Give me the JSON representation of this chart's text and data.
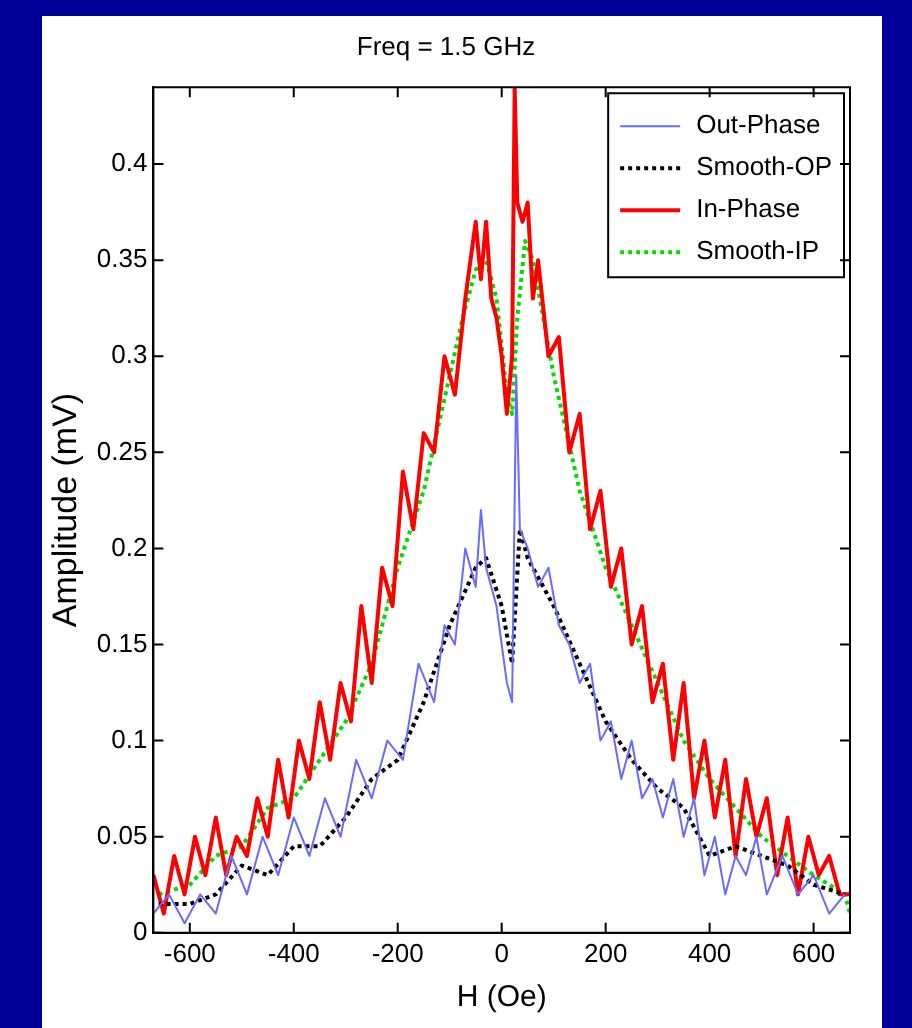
{
  "chart_data": {
    "type": "line",
    "title": "Freq = 1.5 GHz",
    "xlabel": "H (Oe)",
    "ylabel": "Amplitude (mV)",
    "xlim": [
      -670,
      670
    ],
    "xticks": [
      -600,
      -400,
      -200,
      0,
      200,
      400,
      600
    ],
    "ylim": [
      0,
      0.44
    ],
    "yticks": [
      0,
      0.05,
      0.1,
      0.15,
      0.2,
      0.25,
      0.3,
      0.35,
      0.4
    ],
    "grid": false,
    "legend": "top right",
    "marker": "none",
    "series": [
      {
        "name": "Out-Phase",
        "color": "#6a6aff",
        "line_style": "solid",
        "x": [
          -670,
          -640,
          -610,
          -580,
          -550,
          -520,
          -490,
          -460,
          -430,
          -400,
          -370,
          -340,
          -310,
          -280,
          -250,
          -220,
          -190,
          -160,
          -130,
          -110,
          -90,
          -70,
          -50,
          -40,
          -30,
          -10,
          0,
          10,
          20,
          28,
          35,
          50,
          70,
          90,
          110,
          130,
          150,
          170,
          190,
          210,
          230,
          250,
          270,
          290,
          310,
          330,
          350,
          370,
          390,
          410,
          430,
          450,
          470,
          490,
          510,
          540,
          570,
          600,
          630,
          660
        ],
        "values": [
          0.01,
          0.02,
          0.005,
          0.02,
          0.01,
          0.04,
          0.02,
          0.05,
          0.03,
          0.06,
          0.04,
          0.07,
          0.05,
          0.09,
          0.07,
          0.1,
          0.09,
          0.14,
          0.12,
          0.16,
          0.15,
          0.2,
          0.18,
          0.22,
          0.19,
          0.17,
          0.15,
          0.13,
          0.12,
          0.29,
          0.21,
          0.2,
          0.18,
          0.19,
          0.16,
          0.15,
          0.13,
          0.14,
          0.1,
          0.11,
          0.08,
          0.1,
          0.07,
          0.08,
          0.06,
          0.08,
          0.05,
          0.07,
          0.03,
          0.05,
          0.02,
          0.04,
          0.03,
          0.05,
          0.02,
          0.04,
          0.02,
          0.03,
          0.01,
          0.02
        ]
      },
      {
        "name": "Smooth-OP",
        "color": "#000000",
        "line_style": "dotted",
        "x": [
          -660,
          -600,
          -550,
          -500,
          -450,
          -400,
          -350,
          -300,
          -250,
          -200,
          -150,
          -100,
          -50,
          -30,
          0,
          20,
          35,
          50,
          100,
          150,
          200,
          250,
          300,
          350,
          400,
          450,
          500,
          550,
          600,
          660
        ],
        "values": [
          0.015,
          0.015,
          0.02,
          0.035,
          0.03,
          0.045,
          0.045,
          0.06,
          0.08,
          0.09,
          0.12,
          0.16,
          0.19,
          0.195,
          0.17,
          0.14,
          0.21,
          0.195,
          0.17,
          0.14,
          0.11,
          0.09,
          0.075,
          0.065,
          0.04,
          0.045,
          0.04,
          0.035,
          0.025,
          0.02
        ]
      },
      {
        "name": "In-Phase",
        "color": "#ff0000",
        "line_style": "solid",
        "x": [
          -670,
          -650,
          -630,
          -610,
          -590,
          -570,
          -550,
          -530,
          -510,
          -490,
          -470,
          -450,
          -430,
          -410,
          -390,
          -370,
          -350,
          -330,
          -310,
          -290,
          -270,
          -250,
          -230,
          -210,
          -190,
          -170,
          -150,
          -130,
          -110,
          -90,
          -70,
          -50,
          -40,
          -30,
          -20,
          -10,
          0,
          10,
          20,
          25,
          30,
          40,
          50,
          60,
          70,
          90,
          110,
          130,
          150,
          170,
          190,
          210,
          230,
          250,
          270,
          290,
          310,
          330,
          350,
          370,
          390,
          410,
          430,
          450,
          470,
          490,
          510,
          530,
          550,
          570,
          590,
          610,
          630,
          650,
          670
        ],
        "values": [
          0.03,
          0.01,
          0.04,
          0.02,
          0.05,
          0.03,
          0.06,
          0.03,
          0.05,
          0.04,
          0.07,
          0.05,
          0.09,
          0.06,
          0.1,
          0.08,
          0.12,
          0.09,
          0.13,
          0.11,
          0.17,
          0.13,
          0.19,
          0.17,
          0.24,
          0.21,
          0.26,
          0.25,
          0.3,
          0.28,
          0.33,
          0.37,
          0.34,
          0.37,
          0.33,
          0.32,
          0.3,
          0.27,
          0.3,
          0.44,
          0.38,
          0.37,
          0.38,
          0.33,
          0.35,
          0.3,
          0.31,
          0.25,
          0.27,
          0.21,
          0.23,
          0.18,
          0.2,
          0.15,
          0.17,
          0.12,
          0.14,
          0.09,
          0.13,
          0.07,
          0.1,
          0.06,
          0.09,
          0.04,
          0.08,
          0.05,
          0.07,
          0.03,
          0.06,
          0.02,
          0.05,
          0.03,
          0.04,
          0.02,
          0.02
        ]
      },
      {
        "name": "Smooth-IP",
        "color": "#00dd00",
        "line_style": "dotted",
        "x": [
          -660,
          -600,
          -550,
          -500,
          -450,
          -400,
          -350,
          -300,
          -250,
          -200,
          -150,
          -100,
          -75,
          -50,
          -30,
          -10,
          10,
          20,
          30,
          45,
          60,
          80,
          100,
          150,
          200,
          250,
          300,
          350,
          400,
          450,
          500,
          550,
          600,
          660,
          670
        ],
        "values": [
          0.02,
          0.025,
          0.04,
          0.045,
          0.065,
          0.07,
          0.09,
          0.11,
          0.14,
          0.19,
          0.23,
          0.29,
          0.32,
          0.345,
          0.35,
          0.33,
          0.28,
          0.27,
          0.32,
          0.36,
          0.35,
          0.32,
          0.29,
          0.23,
          0.19,
          0.16,
          0.13,
          0.1,
          0.08,
          0.065,
          0.05,
          0.04,
          0.03,
          0.02,
          0.01
        ]
      }
    ]
  }
}
